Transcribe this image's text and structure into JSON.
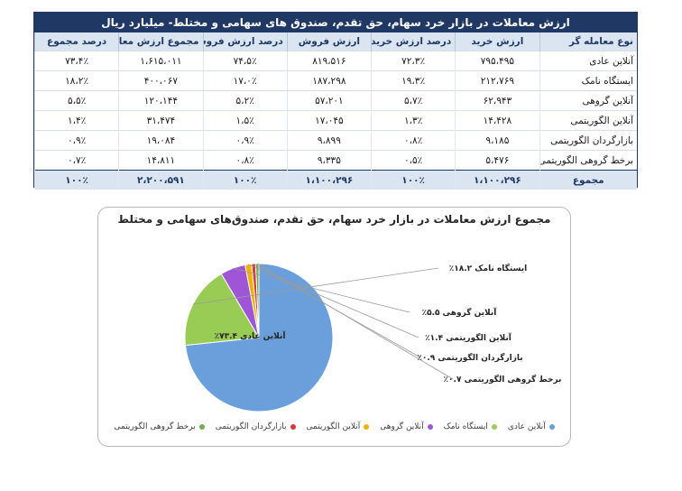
{
  "table": {
    "title": "ارزش معاملات در بازار خرد سهام، حق تقدم، صندوق های سهامی و مختلط- میلیارد ریال",
    "headers": [
      "نوع معامله گر",
      "ارزش خرید",
      "درصد ارزش خرید",
      "ارزش فروش",
      "درصد ارزش فروش",
      "مجموع ارزش معاملات",
      "درصد مجموع"
    ],
    "rows": [
      [
        "آنلاین عادی",
        "۷۹۵،۴۹۵",
        "۷۲،۳٪",
        "۸۱۹،۵۱۶",
        "۷۴،۵٪",
        "۱،۶۱۵،۰۱۱",
        "۷۳،۴٪"
      ],
      [
        "ایستگاه نامک",
        "۲۱۲،۷۶۹",
        "۱۹،۳٪",
        "۱۸۷،۲۹۸",
        "۱۷،۰٪",
        "۴۰۰،۰۶۷",
        "۱۸،۲٪"
      ],
      [
        "آنلاین گروهی",
        "۶۲،۹۴۳",
        "۵،۷٪",
        "۵۷،۲۰۱",
        "۵،۲٪",
        "۱۲۰،۱۴۴",
        "۵،۵٪"
      ],
      [
        "آنلاین الگوریتمی",
        "۱۴،۴۲۸",
        "۱،۳٪",
        "۱۷،۰۴۵",
        "۱،۵٪",
        "۳۱،۴۷۴",
        "۱،۴٪"
      ],
      [
        "بازارگردان الگوریتمی",
        "۹،۱۸۵",
        "۰،۸٪",
        "۹،۸۹۹",
        "۰،۹٪",
        "۱۹،۰۸۴",
        "۰،۹٪"
      ],
      [
        "برخط گروهی الگوریتمی",
        "۵،۴۷۶",
        "۰،۵٪",
        "۹،۳۳۵",
        "۰،۸٪",
        "۱۴،۸۱۱",
        "۰،۷٪"
      ]
    ],
    "total": [
      "مجموع",
      "۱،۱۰۰،۲۹۶",
      "۱۰۰٪",
      "۱،۱۰۰،۲۹۶",
      "۱۰۰٪",
      "۲،۲۰۰،۵۹۱",
      "۱۰۰٪"
    ]
  },
  "chart_data": {
    "type": "pie",
    "title": "مجموع ارزش معاملات در بازار خرد سهام، حق تقدم، صندوق‌های سهامی و مختلط",
    "categories": [
      "آنلاین عادی",
      "ایستگاه نامک",
      "آنلاین گروهی",
      "آنلاین الگوریتمی",
      "بازارگردان الگوریتمی",
      "برخط گروهی الگوریتمی"
    ],
    "values": [
      73.4,
      18.2,
      5.5,
      1.4,
      0.9,
      0.7
    ],
    "data_labels": [
      "آنلاین عادی ۷۳.۴٪",
      "ایستگاه نامک ۱۸.۲٪",
      "آنلاین گروهی ۵.۵٪",
      "آنلاین الگوریتمی ۱.۴٪",
      "بازارگردان الگوریتمی ۰.۹٪",
      "برخط گروهی الگوریتمی ۰.۷٪"
    ],
    "colors": [
      "#6a9fdc",
      "#99cc55",
      "#9e55d6",
      "#f2b000",
      "#d23b3b",
      "#77a84f"
    ],
    "legend_position": "bottom"
  }
}
